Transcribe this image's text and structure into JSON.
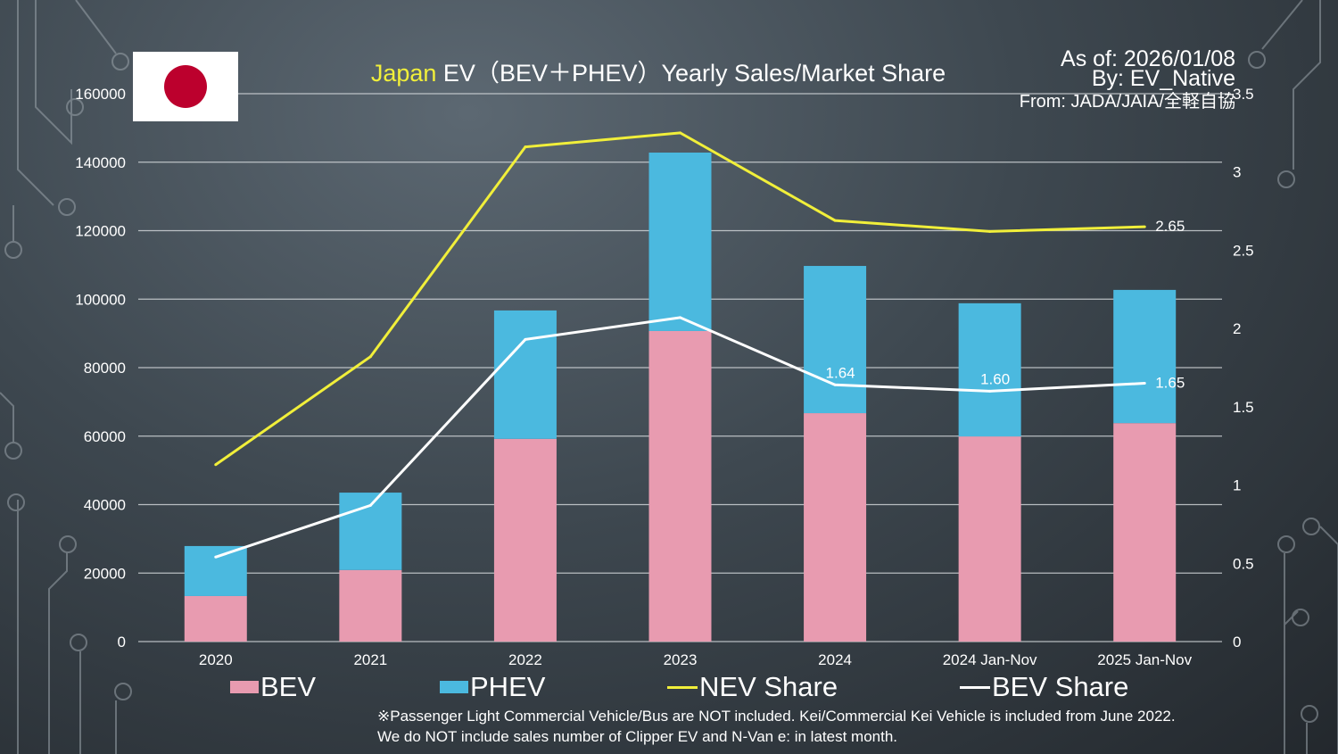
{
  "header": {
    "title_highlight": "Japan",
    "title_rest": " EV（BEV＋PHEV）Yearly Sales/Market Share",
    "as_of": "As of: 2026/01/08",
    "by": "By: EV_Native",
    "source": "From: JADA/JAIA/全軽自協"
  },
  "flag": "Japan",
  "legend": {
    "bev": "BEV",
    "phev": "PHEV",
    "nev_share": "NEV Share",
    "bev_share": "BEV Share"
  },
  "notes": [
    "※Passenger Light Commercial Vehicle/Bus are NOT included. Kei/Commercial Kei Vehicle is included from June 2022.",
    "We do NOT include sales number of Clipper EV and N-Van e: in latest month."
  ],
  "colors": {
    "bev": "#e89bb0",
    "phev": "#4bb9df",
    "nev_share": "#f1ef3a",
    "bev_share": "#ffffff",
    "highlight": "#f1ef3a"
  },
  "chart_data": {
    "type": "bar",
    "stacked": true,
    "categories": [
      "2020",
      "2021",
      "2022",
      "2023",
      "2024",
      "2024 Jan-Nov",
      "2025 Jan-Nov"
    ],
    "series": [
      {
        "name": "BEV",
        "type": "bar",
        "axis": "left",
        "values": [
          13300,
          20900,
          59200,
          90700,
          66700,
          59900,
          63800
        ]
      },
      {
        "name": "PHEV",
        "type": "bar",
        "axis": "left",
        "values": [
          14600,
          22600,
          37500,
          52100,
          43000,
          38900,
          38900
        ]
      },
      {
        "name": "NEV Share",
        "type": "line",
        "axis": "right",
        "values": [
          1.13,
          1.82,
          3.16,
          3.25,
          2.69,
          2.62,
          2.65
        ],
        "labels": [
          null,
          null,
          null,
          null,
          null,
          null,
          "2.65"
        ]
      },
      {
        "name": "BEV Share",
        "type": "line",
        "axis": "right",
        "values": [
          0.54,
          0.87,
          1.93,
          2.07,
          1.64,
          1.6,
          1.65
        ],
        "labels": [
          null,
          null,
          null,
          null,
          "1.64",
          "1.60",
          "1.65"
        ]
      }
    ],
    "ylim": [
      0,
      160000
    ],
    "yticks": [
      "0",
      "20000",
      "40000",
      "60000",
      "80000",
      "100000",
      "120000",
      "140000",
      "160000"
    ],
    "y2lim": [
      0,
      3.5
    ],
    "y2ticks": [
      "0",
      "0.5",
      "1",
      "1.5",
      "2",
      "2.5",
      "3",
      "3.5"
    ],
    "grid": true,
    "legend_position": "bottom"
  }
}
